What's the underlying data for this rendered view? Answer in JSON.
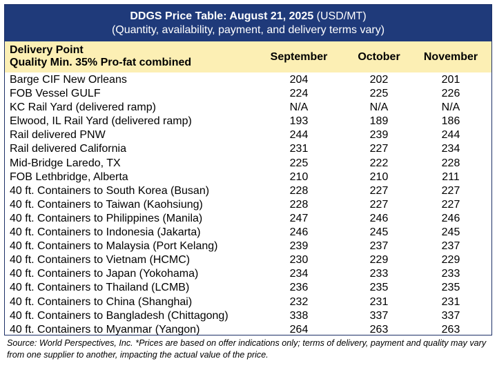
{
  "title": {
    "bold": "DDGS Price Table: August 21, 2025",
    "unit": " (USD/MT)",
    "subtitle": "(Quantity, availability, payment, and delivery terms vary)"
  },
  "header": {
    "label_line1": "Delivery Point",
    "label_line2": "Quality Min. 35% Pro-fat combined",
    "columns": [
      "September",
      "October",
      "November"
    ]
  },
  "rows": [
    {
      "label": "Barge CIF New Orleans",
      "values": [
        "204",
        "202",
        "201"
      ]
    },
    {
      "label": "FOB Vessel GULF",
      "values": [
        "224",
        "225",
        "226"
      ]
    },
    {
      "label": "KC Rail Yard (delivered ramp)",
      "values": [
        "N/A",
        "N/A",
        "N/A"
      ]
    },
    {
      "label": "Elwood, IL Rail Yard (delivered ramp)",
      "values": [
        "193",
        "189",
        "186"
      ]
    },
    {
      "label": "Rail delivered PNW",
      "values": [
        "244",
        "239",
        "244"
      ]
    },
    {
      "label": "Rail delivered California",
      "values": [
        "231",
        "227",
        "234"
      ]
    },
    {
      "label": "Mid-Bridge Laredo, TX",
      "values": [
        "225",
        "222",
        "228"
      ]
    },
    {
      "label": "FOB Lethbridge, Alberta",
      "values": [
        "210",
        "210",
        "211"
      ]
    },
    {
      "label": "40 ft. Containers to South Korea (Busan)",
      "values": [
        "228",
        "227",
        "227"
      ]
    },
    {
      "label": "40 ft. Containers to Taiwan (Kaohsiung)",
      "values": [
        "228",
        "227",
        "227"
      ]
    },
    {
      "label": "40 ft. Containers to Philippines (Manila)",
      "values": [
        "247",
        "246",
        "246"
      ]
    },
    {
      "label": "40 ft. Containers to Indonesia (Jakarta)",
      "values": [
        "246",
        "245",
        "245"
      ]
    },
    {
      "label": "40 ft. Containers to Malaysia (Port Kelang)",
      "values": [
        "239",
        "237",
        "237"
      ]
    },
    {
      "label": "40 ft. Containers to Vietnam (HCMC)",
      "values": [
        "230",
        "229",
        "229"
      ]
    },
    {
      "label": "40 ft. Containers to Japan (Yokohama)",
      "values": [
        "234",
        "233",
        "233"
      ]
    },
    {
      "label": "40 ft. Containers to Thailand (LCMB)",
      "values": [
        "236",
        "235",
        "235"
      ]
    },
    {
      "label": "40 ft. Containers to China (Shanghai)",
      "values": [
        "232",
        "231",
        "231"
      ]
    },
    {
      "label": "40 ft. Containers to Bangladesh (Chittagong)",
      "values": [
        "338",
        "337",
        "337"
      ]
    },
    {
      "label": "40 ft. Containers to Myanmar (Yangon)",
      "values": [
        "264",
        "263",
        "263"
      ]
    }
  ],
  "source": "Source: World Perspectives, Inc. *Prices are based on offer indications only; terms of delivery, payment and quality may vary from one supplier to another, impacting the actual value of the price.",
  "colors": {
    "title_bg": "#1f3a7a",
    "header_bg": "#fcefb4"
  }
}
